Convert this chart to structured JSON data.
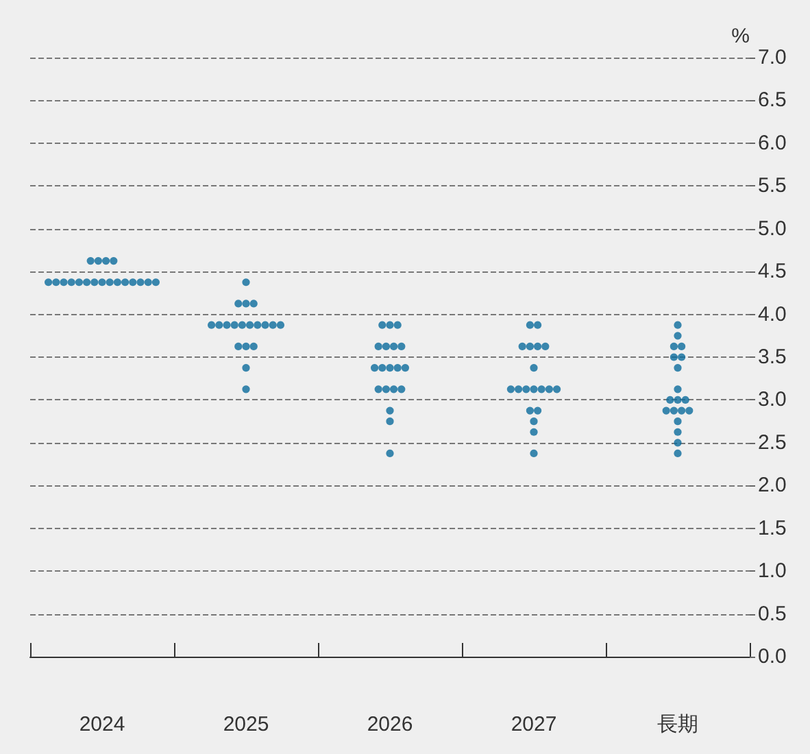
{
  "chart_data": {
    "type": "scatter",
    "ylabel": "%",
    "categories": [
      "2024",
      "2025",
      "2026",
      "2027",
      "長期"
    ],
    "series": [
      {
        "color": "#0b6b9c",
        "values": [
          4.625,
          4.375,
          3.875,
          3.875,
          3.875
        ]
      },
      {
        "color": "#0b6b9c",
        "values": [
          4.625,
          4.125,
          3.875,
          3.875,
          3.75
        ]
      },
      {
        "color": "#0b6b9c",
        "values": [
          4.625,
          4.125,
          3.875,
          3.625,
          3.625
        ]
      },
      {
        "color": "#0b6b9c",
        "values": [
          4.625,
          4.125,
          3.625,
          3.625,
          3.625
        ]
      },
      {
        "color": "#0b6b9c",
        "values": [
          4.375,
          3.875,
          3.625,
          3.625,
          3.5
        ]
      },
      {
        "color": "#0b6b9c",
        "values": [
          4.375,
          3.875,
          3.625,
          3.625,
          3.5
        ]
      },
      {
        "color": "#0b6b9c",
        "values": [
          4.375,
          3.875,
          3.625,
          3.375,
          3.375
        ]
      },
      {
        "color": "#0b6b9c",
        "values": [
          4.375,
          3.875,
          3.375,
          3.125,
          3.125
        ]
      },
      {
        "color": "#0b6b9c",
        "values": [
          4.375,
          3.875,
          3.375,
          3.125,
          3.0
        ]
      },
      {
        "color": "#0b6b9c",
        "values": [
          4.375,
          3.875,
          3.375,
          3.125,
          3.0
        ]
      },
      {
        "color": "#0b6b9c",
        "values": [
          4.375,
          3.875,
          3.375,
          3.125,
          3.0
        ]
      },
      {
        "color": "#0b6b9c",
        "values": [
          4.375,
          3.875,
          3.375,
          3.125,
          2.875
        ]
      },
      {
        "color": "#0b6b9c",
        "values": [
          4.375,
          3.875,
          3.125,
          3.125,
          2.875
        ]
      },
      {
        "color": "#0b6b9c",
        "values": [
          4.375,
          3.875,
          3.125,
          3.125,
          2.875
        ]
      },
      {
        "color": "#0b6b9c",
        "values": [
          4.375,
          3.625,
          3.125,
          2.875,
          2.875
        ]
      },
      {
        "color": "#0b6b9c",
        "values": [
          4.375,
          3.625,
          3.125,
          2.875,
          2.75
        ]
      },
      {
        "color": "#0b6b9c",
        "values": [
          4.375,
          3.625,
          2.875,
          2.75,
          2.625
        ]
      },
      {
        "color": "#0b6b9c",
        "values": [
          4.375,
          3.375,
          2.75,
          2.625,
          2.5
        ]
      },
      {
        "color": "#0b6b9c",
        "values": [
          4.375,
          3.125,
          2.375,
          2.375,
          2.375
        ]
      }
    ],
    "ylim": [
      0.0,
      7.0
    ],
    "yticks": [
      {
        "value": 0.0,
        "label": "0.0"
      },
      {
        "value": 0.5,
        "label": "0.5"
      },
      {
        "value": 1.0,
        "label": "1.0"
      },
      {
        "value": 1.5,
        "label": "1.5"
      },
      {
        "value": 2.0,
        "label": "2.0"
      },
      {
        "value": 2.5,
        "label": "2.5"
      },
      {
        "value": 3.0,
        "label": "3.0"
      },
      {
        "value": 3.5,
        "label": "3.5"
      },
      {
        "value": 4.0,
        "label": "4.0"
      },
      {
        "value": 4.5,
        "label": "4.5"
      },
      {
        "value": 5.0,
        "label": "5.0"
      },
      {
        "value": 5.5,
        "label": "5.5"
      },
      {
        "value": 6.0,
        "label": "6.0"
      },
      {
        "value": 6.5,
        "label": "6.5"
      },
      {
        "value": 7.0,
        "label": "7.0"
      }
    ],
    "grid": "y",
    "marker": "circle"
  }
}
